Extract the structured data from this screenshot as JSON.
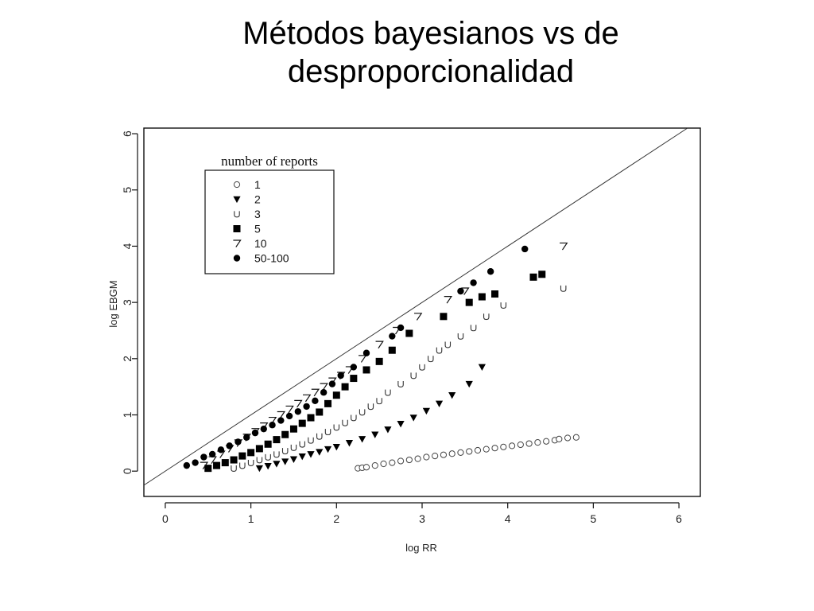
{
  "slide": {
    "title_line1": "Métodos bayesianos vs de",
    "title_line2": "desproporcionalidad"
  },
  "chart_data": {
    "type": "scatter",
    "xlabel": "log RR",
    "ylabel": "log EBGM",
    "xlim": [
      -0.25,
      6.25
    ],
    "ylim": [
      -0.45,
      6.1
    ],
    "x_ticks": [
      0,
      1,
      2,
      3,
      4,
      5,
      6
    ],
    "y_ticks": [
      0,
      1,
      2,
      3,
      4,
      5,
      6
    ],
    "grid": false,
    "reference_line": "y = x",
    "legend": {
      "title": "number of reports",
      "placement": "top-left"
    },
    "series": [
      {
        "name": "1",
        "marker": "open-circle",
        "x": [
          2.25,
          2.3,
          2.35,
          2.45,
          2.55,
          2.65,
          2.75,
          2.85,
          2.95,
          3.05,
          3.15,
          3.25,
          3.35,
          3.45,
          3.55,
          3.65,
          3.75,
          3.85,
          3.95,
          4.05,
          4.15,
          4.25,
          4.35,
          4.45,
          4.55,
          4.6,
          4.7,
          4.8
        ],
        "y": [
          0.05,
          0.06,
          0.07,
          0.1,
          0.13,
          0.15,
          0.18,
          0.2,
          0.22,
          0.25,
          0.27,
          0.29,
          0.31,
          0.33,
          0.35,
          0.37,
          0.39,
          0.41,
          0.43,
          0.45,
          0.47,
          0.49,
          0.51,
          0.53,
          0.55,
          0.57,
          0.59,
          0.6
        ]
      },
      {
        "name": "2",
        "marker": "filled-triangle-down",
        "x": [
          1.1,
          1.2,
          1.3,
          1.4,
          1.5,
          1.6,
          1.7,
          1.8,
          1.9,
          2.0,
          2.15,
          2.3,
          2.45,
          2.6,
          2.75,
          2.9,
          3.05,
          3.2,
          3.35,
          3.55,
          3.7
        ],
        "y": [
          0.05,
          0.09,
          0.13,
          0.17,
          0.21,
          0.26,
          0.3,
          0.34,
          0.39,
          0.43,
          0.5,
          0.57,
          0.65,
          0.74,
          0.84,
          0.95,
          1.07,
          1.2,
          1.35,
          1.55,
          1.85
        ]
      },
      {
        "name": "3",
        "marker": "u-symbol",
        "x": [
          0.8,
          0.9,
          1.0,
          1.1,
          1.2,
          1.3,
          1.4,
          1.5,
          1.6,
          1.7,
          1.8,
          1.9,
          2.0,
          2.1,
          2.2,
          2.3,
          2.4,
          2.5,
          2.6,
          2.75,
          2.9,
          3.0,
          3.1,
          3.2,
          3.3,
          3.45,
          3.6,
          3.75,
          3.95,
          4.65
        ],
        "y": [
          0.05,
          0.1,
          0.15,
          0.2,
          0.25,
          0.3,
          0.36,
          0.42,
          0.48,
          0.55,
          0.62,
          0.7,
          0.78,
          0.86,
          0.95,
          1.05,
          1.15,
          1.25,
          1.4,
          1.55,
          1.7,
          1.85,
          2.0,
          2.15,
          2.25,
          2.4,
          2.55,
          2.75,
          2.95,
          3.25
        ]
      },
      {
        "name": "5",
        "marker": "filled-square",
        "x": [
          0.5,
          0.6,
          0.7,
          0.8,
          0.9,
          1.0,
          1.1,
          1.2,
          1.3,
          1.4,
          1.5,
          1.6,
          1.7,
          1.8,
          1.9,
          2.0,
          2.1,
          2.2,
          2.35,
          2.5,
          2.65,
          2.85,
          3.25,
          3.55,
          3.7,
          3.85,
          4.3,
          4.4
        ],
        "y": [
          0.05,
          0.1,
          0.15,
          0.2,
          0.27,
          0.33,
          0.4,
          0.48,
          0.56,
          0.65,
          0.75,
          0.85,
          0.95,
          1.05,
          1.2,
          1.35,
          1.5,
          1.65,
          1.8,
          1.95,
          2.15,
          2.45,
          2.75,
          3.0,
          3.1,
          3.15,
          3.45,
          3.5
        ]
      },
      {
        "name": "10",
        "marker": "seven-symbol",
        "x": [
          0.45,
          0.55,
          0.65,
          0.75,
          0.85,
          0.95,
          1.05,
          1.15,
          1.25,
          1.35,
          1.45,
          1.55,
          1.65,
          1.75,
          1.85,
          1.95,
          2.05,
          2.15,
          2.3,
          2.5,
          2.7,
          2.95,
          3.3,
          3.5,
          4.65
        ],
        "y": [
          0.1,
          0.2,
          0.3,
          0.4,
          0.5,
          0.6,
          0.7,
          0.8,
          0.9,
          1.0,
          1.1,
          1.2,
          1.3,
          1.4,
          1.5,
          1.6,
          1.7,
          1.8,
          2.0,
          2.25,
          2.5,
          2.75,
          3.05,
          3.2,
          4.0
        ]
      },
      {
        "name": "50-100",
        "marker": "filled-circle",
        "x": [
          0.25,
          0.35,
          0.45,
          0.55,
          0.65,
          0.75,
          0.85,
          0.95,
          1.05,
          1.15,
          1.25,
          1.35,
          1.45,
          1.55,
          1.65,
          1.75,
          1.85,
          1.95,
          2.05,
          2.2,
          2.35,
          2.65,
          2.75,
          3.45,
          3.6,
          3.8,
          4.2
        ],
        "y": [
          0.1,
          0.15,
          0.25,
          0.3,
          0.38,
          0.45,
          0.52,
          0.6,
          0.68,
          0.75,
          0.82,
          0.9,
          0.98,
          1.06,
          1.15,
          1.25,
          1.4,
          1.55,
          1.7,
          1.85,
          2.1,
          2.4,
          2.55,
          3.2,
          3.35,
          3.55,
          3.95
        ]
      }
    ]
  }
}
